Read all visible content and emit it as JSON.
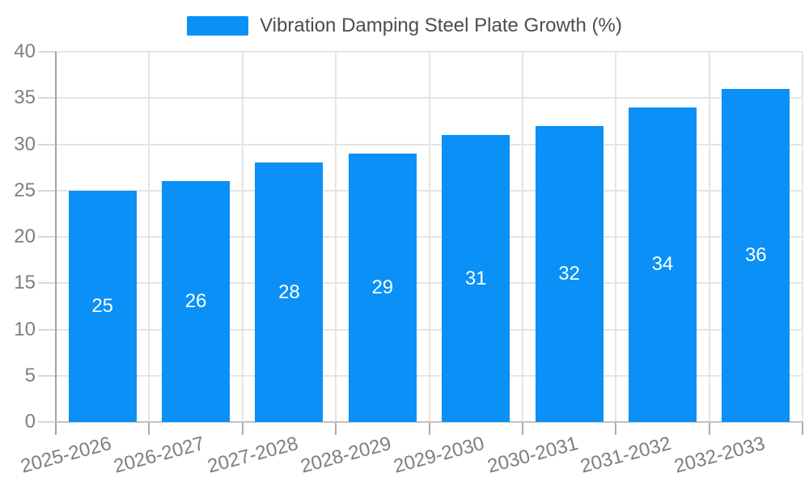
{
  "chart_data": {
    "type": "bar",
    "title": "Vibration Damping Steel Plate Growth (%)",
    "categories": [
      "2025-2026",
      "2026-2027",
      "2027-2028",
      "2028-2029",
      "2029-2030",
      "2030-2031",
      "2031-2032",
      "2032-2033"
    ],
    "values": [
      25,
      26,
      28,
      29,
      31,
      32,
      34,
      36
    ],
    "xlabel": "",
    "ylabel": "",
    "ylim": [
      0,
      40
    ],
    "ytick_step": 5,
    "ytick_labels": [
      "0",
      "5",
      "10",
      "15",
      "20",
      "25",
      "30",
      "35",
      "40"
    ],
    "grid": true,
    "legend_position": "top",
    "legend_entries": [
      "Vibration Damping Steel Plate Growth (%)"
    ],
    "value_label_position": "inside-center",
    "colors": {
      "bar": "#0A90F6",
      "value_label": "#FFFFFF",
      "grid_line": "#E5E5E5",
      "y_axis_line": "#A3A3A3",
      "x_axis_line": "#C2C2C2",
      "y_tick": "#D8D8D8",
      "x_tick": "#ADADAD",
      "axis_label_text": "#7E7E7E",
      "legend_text": "#4D4D4D"
    }
  }
}
